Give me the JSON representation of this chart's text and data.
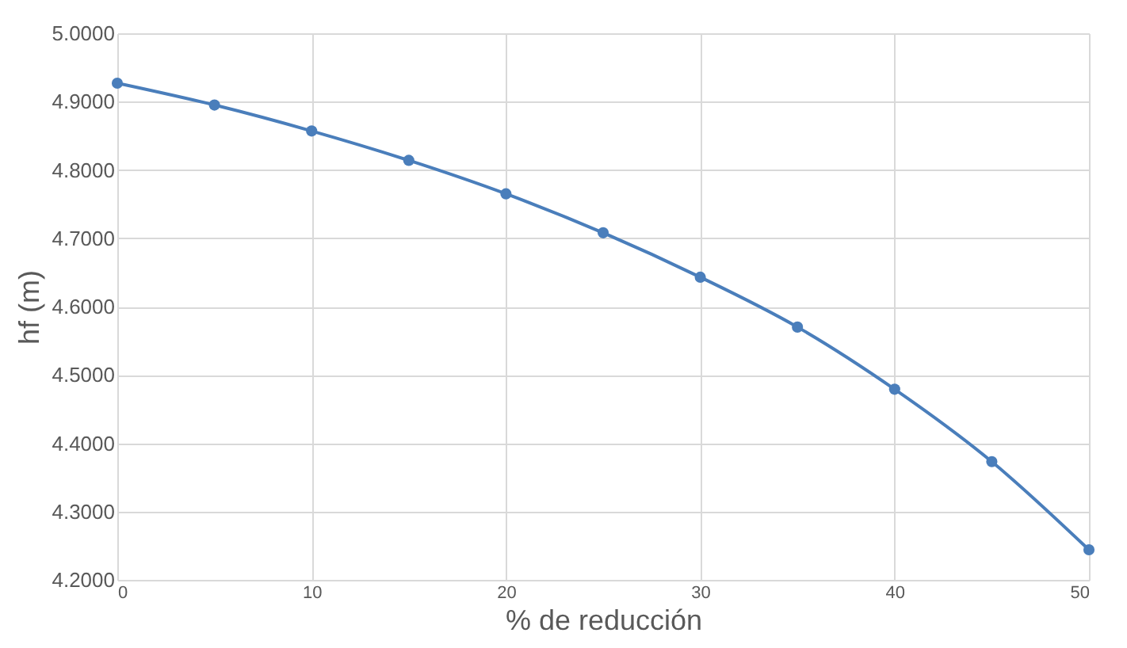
{
  "chart_data": {
    "type": "line",
    "xlabel": "% de reducción",
    "ylabel": "hf (m)",
    "x": [
      0,
      5,
      10,
      15,
      20,
      25,
      30,
      35,
      40,
      45,
      50
    ],
    "series": [
      {
        "color": "#4a7ebb",
        "values": [
          4.927,
          4.895,
          4.857,
          4.814,
          4.765,
          4.708,
          4.643,
          4.57,
          4.479,
          4.373,
          4.244
        ]
      }
    ],
    "xlim": [
      0,
      50
    ],
    "xticks": [
      0,
      10,
      20,
      30,
      40,
      50
    ],
    "ylim": [
      4.2,
      5.0
    ],
    "yticks": [
      {
        "value": 4.2,
        "label": "4.2000"
      },
      {
        "value": 4.3,
        "label": "4.3000"
      },
      {
        "value": 4.4,
        "label": "4.4000"
      },
      {
        "value": 4.5,
        "label": "4.5000"
      },
      {
        "value": 4.6,
        "label": "4.6000"
      },
      {
        "value": 4.7,
        "label": "4.7000"
      },
      {
        "value": 4.8,
        "label": "4.8000"
      },
      {
        "value": 4.9,
        "label": "4.9000"
      },
      {
        "value": 5.0,
        "label": "5.0000"
      }
    ],
    "grid": true,
    "marker": "circle",
    "line_style": "solid"
  }
}
